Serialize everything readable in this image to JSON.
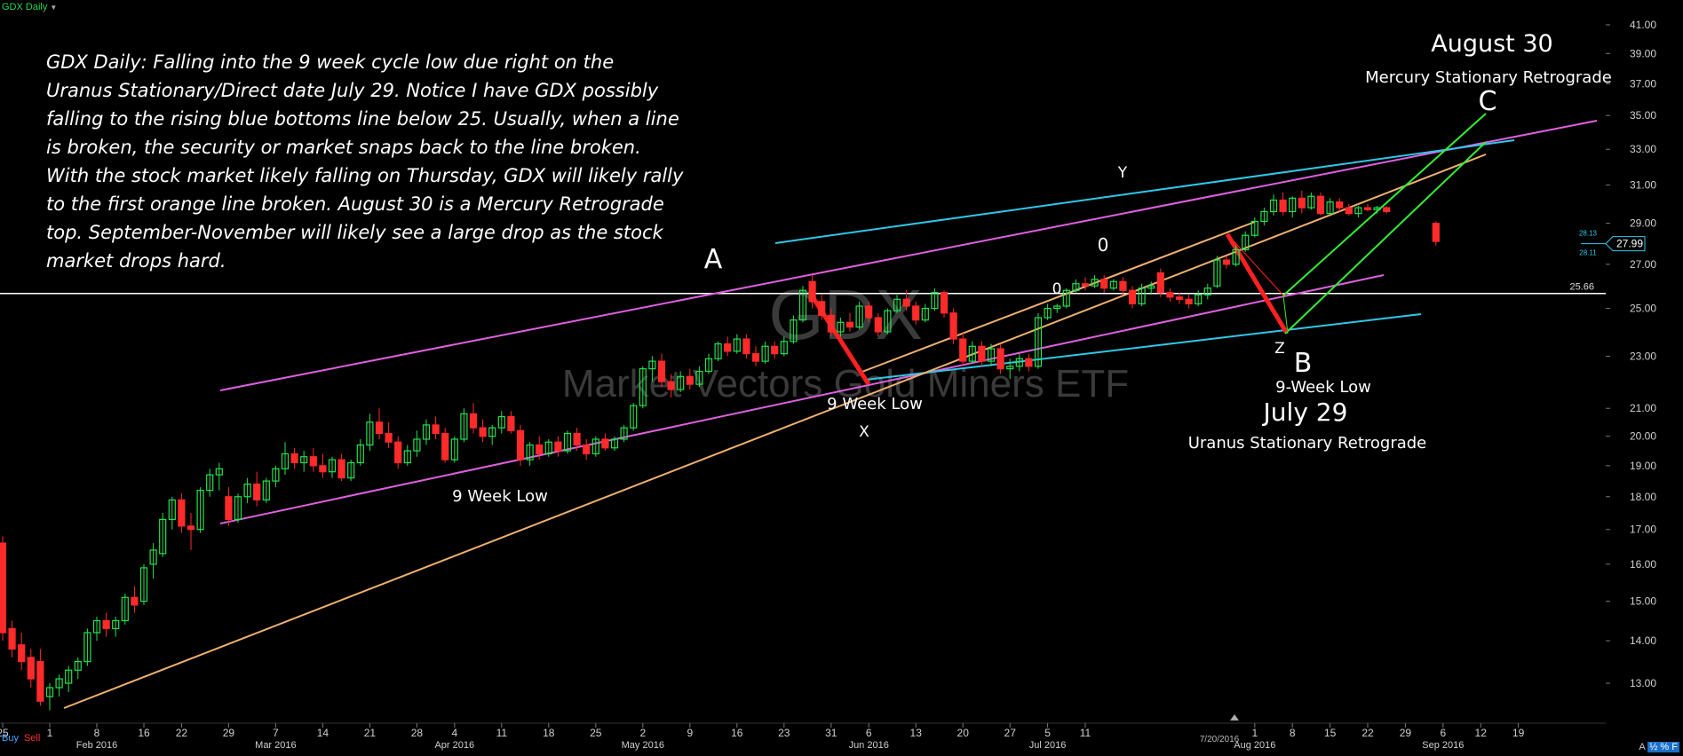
{
  "header": {
    "symbol_timeframe": "GDX Daily"
  },
  "watermark": {
    "symbol": "GDX",
    "name": "Market Vectors Gold Miners ETF"
  },
  "commentary": "GDX Daily: Falling into the 9 week cycle low due right on the Uranus Stationary/Direct date July 29. Notice I have GDX possibly falling to the rising blue bottoms line below 25. Usually, when a line is broken, the security or market snaps back to the line broken.  With the stock market likely falling on Thursday, GDX will likely rally to the first orange line broken. August 30 is a Mercury Retrograde top. September-November will likely see a large drop as the stock market drops hard.",
  "bottom_bar": {
    "buy_label": "Buy",
    "sell_label": "Sell",
    "corner_label": "A",
    "corner_icons": "½ % F",
    "cursor_date": "7/20/2016"
  },
  "colors": {
    "up": "#22e34d",
    "down": "#ff2a2a",
    "pink": "#e060e0",
    "cyan": "#30c8e8",
    "orange": "#f0b070",
    "green": "#33ee33",
    "red_arrow": "#ff2020",
    "white": "#ffffff"
  },
  "chart_data": {
    "type": "candlestick",
    "title": "GDX Daily",
    "ylim": [
      12.0,
      42.0
    ],
    "y_scale": "log",
    "y_ticks": [
      "41.00",
      "39.00",
      "37.00",
      "35.00",
      "33.00",
      "31.00",
      "29.00",
      "27.00",
      "25.00",
      "23.00",
      "21.00",
      "20.00",
      "19.00",
      "18.00",
      "17.00",
      "16.00",
      "15.00",
      "14.00",
      "13.00"
    ],
    "x_tick_days": [
      "25",
      "1",
      "8",
      "16",
      "22",
      "29",
      "7",
      "14",
      "21",
      "28",
      "4",
      "11",
      "18",
      "25",
      "2",
      "9",
      "16",
      "23",
      "31",
      "6",
      "13",
      "20",
      "27",
      "5",
      "11",
      "1",
      "8",
      "15",
      "22",
      "29",
      "6",
      "12",
      "19"
    ],
    "x_tick_months": [
      "Feb 2016",
      "Mar 2016",
      "Apr 2016",
      "May 2016",
      "Jun 2016",
      "Jul 2016",
      "Aug 2016",
      "Sep 2016"
    ],
    "last_price": "27.99",
    "price_tags": [
      "28.13",
      "28.11"
    ],
    "horizontal_line": {
      "value": 25.66,
      "label": "25.66"
    },
    "candles": [
      {
        "o": 16.6,
        "h": 16.8,
        "l": 14.0,
        "c": 14.2
      },
      {
        "o": 14.3,
        "h": 14.5,
        "l": 13.6,
        "c": 13.8
      },
      {
        "o": 13.9,
        "h": 14.2,
        "l": 13.3,
        "c": 13.5
      },
      {
        "o": 13.6,
        "h": 13.8,
        "l": 12.9,
        "c": 13.1
      },
      {
        "o": 13.5,
        "h": 13.8,
        "l": 12.5,
        "c": 12.6
      },
      {
        "o": 12.7,
        "h": 13.0,
        "l": 12.4,
        "c": 12.9
      },
      {
        "o": 12.9,
        "h": 13.2,
        "l": 12.7,
        "c": 13.1
      },
      {
        "o": 13.0,
        "h": 13.4,
        "l": 12.8,
        "c": 13.3
      },
      {
        "o": 13.3,
        "h": 13.6,
        "l": 13.1,
        "c": 13.5
      },
      {
        "o": 13.5,
        "h": 14.3,
        "l": 13.4,
        "c": 14.2
      },
      {
        "o": 14.2,
        "h": 14.6,
        "l": 14.0,
        "c": 14.5
      },
      {
        "o": 14.5,
        "h": 14.7,
        "l": 14.1,
        "c": 14.3
      },
      {
        "o": 14.3,
        "h": 14.6,
        "l": 14.1,
        "c": 14.5
      },
      {
        "o": 14.5,
        "h": 15.2,
        "l": 14.4,
        "c": 15.1
      },
      {
        "o": 15.1,
        "h": 15.4,
        "l": 14.7,
        "c": 14.9
      },
      {
        "o": 15.0,
        "h": 16.0,
        "l": 14.9,
        "c": 15.9
      },
      {
        "o": 16.0,
        "h": 16.6,
        "l": 15.6,
        "c": 16.4
      },
      {
        "o": 16.3,
        "h": 17.5,
        "l": 16.2,
        "c": 17.3
      },
      {
        "o": 17.3,
        "h": 18.0,
        "l": 17.0,
        "c": 17.9
      },
      {
        "o": 17.9,
        "h": 18.1,
        "l": 16.9,
        "c": 17.1
      },
      {
        "o": 17.1,
        "h": 17.5,
        "l": 16.4,
        "c": 17.0
      },
      {
        "o": 17.0,
        "h": 18.3,
        "l": 16.9,
        "c": 18.2
      },
      {
        "o": 18.2,
        "h": 18.9,
        "l": 18.0,
        "c": 18.7
      },
      {
        "o": 18.7,
        "h": 19.1,
        "l": 18.2,
        "c": 18.9
      },
      {
        "o": 18.0,
        "h": 18.3,
        "l": 17.1,
        "c": 17.3
      },
      {
        "o": 17.3,
        "h": 18.1,
        "l": 17.2,
        "c": 18.0
      },
      {
        "o": 18.0,
        "h": 18.6,
        "l": 17.8,
        "c": 18.4
      },
      {
        "o": 18.4,
        "h": 18.8,
        "l": 17.7,
        "c": 17.9
      },
      {
        "o": 17.9,
        "h": 18.6,
        "l": 17.8,
        "c": 18.5
      },
      {
        "o": 18.5,
        "h": 19.0,
        "l": 18.3,
        "c": 18.9
      },
      {
        "o": 18.9,
        "h": 19.8,
        "l": 18.7,
        "c": 19.4
      },
      {
        "o": 19.4,
        "h": 19.6,
        "l": 18.9,
        "c": 19.1
      },
      {
        "o": 19.1,
        "h": 19.5,
        "l": 18.8,
        "c": 19.3
      },
      {
        "o": 19.3,
        "h": 19.6,
        "l": 18.8,
        "c": 19.0
      },
      {
        "o": 19.0,
        "h": 19.4,
        "l": 18.6,
        "c": 18.8
      },
      {
        "o": 18.8,
        "h": 19.3,
        "l": 18.6,
        "c": 19.2
      },
      {
        "o": 19.2,
        "h": 19.4,
        "l": 18.5,
        "c": 18.6
      },
      {
        "o": 18.6,
        "h": 19.2,
        "l": 18.5,
        "c": 19.1
      },
      {
        "o": 19.1,
        "h": 19.9,
        "l": 19.0,
        "c": 19.7
      },
      {
        "o": 19.7,
        "h": 20.8,
        "l": 19.5,
        "c": 20.5
      },
      {
        "o": 20.5,
        "h": 21.0,
        "l": 19.9,
        "c": 20.1
      },
      {
        "o": 20.1,
        "h": 20.5,
        "l": 19.6,
        "c": 19.8
      },
      {
        "o": 19.8,
        "h": 20.0,
        "l": 18.9,
        "c": 19.1
      },
      {
        "o": 19.1,
        "h": 19.7,
        "l": 19.0,
        "c": 19.5
      },
      {
        "o": 19.5,
        "h": 20.2,
        "l": 19.3,
        "c": 19.9
      },
      {
        "o": 19.9,
        "h": 20.6,
        "l": 19.7,
        "c": 20.4
      },
      {
        "o": 20.4,
        "h": 20.7,
        "l": 19.9,
        "c": 20.1
      },
      {
        "o": 20.1,
        "h": 20.3,
        "l": 19.1,
        "c": 19.2
      },
      {
        "o": 19.2,
        "h": 20.0,
        "l": 19.1,
        "c": 19.9
      },
      {
        "o": 19.9,
        "h": 21.0,
        "l": 19.8,
        "c": 20.8
      },
      {
        "o": 20.8,
        "h": 21.2,
        "l": 20.1,
        "c": 20.3
      },
      {
        "o": 20.3,
        "h": 20.6,
        "l": 19.8,
        "c": 20.0
      },
      {
        "o": 20.0,
        "h": 20.4,
        "l": 19.7,
        "c": 20.3
      },
      {
        "o": 20.3,
        "h": 20.9,
        "l": 20.1,
        "c": 20.7
      },
      {
        "o": 20.7,
        "h": 20.9,
        "l": 20.1,
        "c": 20.2
      },
      {
        "o": 20.2,
        "h": 20.4,
        "l": 19.0,
        "c": 19.2
      },
      {
        "o": 19.2,
        "h": 19.8,
        "l": 19.0,
        "c": 19.7
      },
      {
        "o": 19.7,
        "h": 20.0,
        "l": 19.2,
        "c": 19.4
      },
      {
        "o": 19.4,
        "h": 19.9,
        "l": 19.3,
        "c": 19.8
      },
      {
        "o": 19.8,
        "h": 20.0,
        "l": 19.3,
        "c": 19.5
      },
      {
        "o": 19.5,
        "h": 20.2,
        "l": 19.4,
        "c": 20.1
      },
      {
        "o": 20.1,
        "h": 20.3,
        "l": 19.5,
        "c": 19.7
      },
      {
        "o": 19.7,
        "h": 19.9,
        "l": 19.2,
        "c": 19.4
      },
      {
        "o": 19.4,
        "h": 20.0,
        "l": 19.3,
        "c": 19.9
      },
      {
        "o": 19.9,
        "h": 20.1,
        "l": 19.5,
        "c": 19.6
      },
      {
        "o": 19.6,
        "h": 20.0,
        "l": 19.5,
        "c": 19.9
      },
      {
        "o": 19.9,
        "h": 20.4,
        "l": 19.8,
        "c": 20.3
      },
      {
        "o": 20.3,
        "h": 21.2,
        "l": 20.2,
        "c": 21.1
      },
      {
        "o": 21.1,
        "h": 22.6,
        "l": 21.0,
        "c": 22.5
      },
      {
        "o": 22.5,
        "h": 23.0,
        "l": 22.0,
        "c": 22.8
      },
      {
        "o": 22.8,
        "h": 23.1,
        "l": 21.8,
        "c": 22.0
      },
      {
        "o": 22.0,
        "h": 22.3,
        "l": 21.4,
        "c": 21.7
      },
      {
        "o": 21.7,
        "h": 22.4,
        "l": 21.6,
        "c": 22.2
      },
      {
        "o": 22.2,
        "h": 22.5,
        "l": 21.7,
        "c": 21.9
      },
      {
        "o": 21.9,
        "h": 22.6,
        "l": 21.8,
        "c": 22.4
      },
      {
        "o": 22.4,
        "h": 23.1,
        "l": 22.3,
        "c": 22.9
      },
      {
        "o": 22.9,
        "h": 23.6,
        "l": 22.8,
        "c": 23.5
      },
      {
        "o": 23.5,
        "h": 23.8,
        "l": 23.0,
        "c": 23.2
      },
      {
        "o": 23.2,
        "h": 23.9,
        "l": 23.1,
        "c": 23.7
      },
      {
        "o": 23.7,
        "h": 23.9,
        "l": 22.9,
        "c": 23.1
      },
      {
        "o": 23.1,
        "h": 23.4,
        "l": 22.6,
        "c": 22.8
      },
      {
        "o": 22.8,
        "h": 23.6,
        "l": 22.7,
        "c": 23.4
      },
      {
        "o": 23.4,
        "h": 23.6,
        "l": 22.9,
        "c": 23.1
      },
      {
        "o": 23.1,
        "h": 23.8,
        "l": 23.0,
        "c": 23.6
      },
      {
        "o": 23.6,
        "h": 24.7,
        "l": 23.5,
        "c": 24.5
      },
      {
        "o": 24.5,
        "h": 26.0,
        "l": 24.4,
        "c": 25.8
      },
      {
        "o": 26.2,
        "h": 26.5,
        "l": 25.0,
        "c": 25.3
      },
      {
        "o": 25.3,
        "h": 25.6,
        "l": 24.5,
        "c": 24.7
      },
      {
        "o": 24.7,
        "h": 25.0,
        "l": 23.8,
        "c": 24.0
      },
      {
        "o": 24.0,
        "h": 24.6,
        "l": 23.8,
        "c": 24.4
      },
      {
        "o": 24.4,
        "h": 24.8,
        "l": 24.0,
        "c": 24.2
      },
      {
        "o": 24.2,
        "h": 25.3,
        "l": 24.1,
        "c": 25.1
      },
      {
        "o": 25.1,
        "h": 25.3,
        "l": 24.4,
        "c": 24.6
      },
      {
        "o": 24.6,
        "h": 24.8,
        "l": 23.8,
        "c": 24.0
      },
      {
        "o": 24.0,
        "h": 25.0,
        "l": 23.9,
        "c": 24.9
      },
      {
        "o": 24.9,
        "h": 25.6,
        "l": 24.8,
        "c": 25.4
      },
      {
        "o": 25.4,
        "h": 25.8,
        "l": 24.9,
        "c": 25.1
      },
      {
        "o": 25.1,
        "h": 25.3,
        "l": 24.3,
        "c": 24.5
      },
      {
        "o": 24.5,
        "h": 25.2,
        "l": 24.4,
        "c": 25.0
      },
      {
        "o": 25.0,
        "h": 25.9,
        "l": 24.9,
        "c": 25.7
      },
      {
        "o": 25.7,
        "h": 25.8,
        "l": 24.6,
        "c": 24.8
      },
      {
        "o": 24.8,
        "h": 25.0,
        "l": 23.5,
        "c": 23.7
      },
      {
        "o": 23.7,
        "h": 24.0,
        "l": 22.6,
        "c": 22.8
      },
      {
        "o": 22.8,
        "h": 23.6,
        "l": 22.7,
        "c": 23.4
      },
      {
        "o": 23.4,
        "h": 23.6,
        "l": 22.6,
        "c": 22.8
      },
      {
        "o": 22.8,
        "h": 23.5,
        "l": 22.6,
        "c": 23.3
      },
      {
        "o": 23.3,
        "h": 23.5,
        "l": 22.3,
        "c": 22.5
      },
      {
        "o": 22.5,
        "h": 22.9,
        "l": 22.1,
        "c": 22.6
      },
      {
        "o": 22.6,
        "h": 23.1,
        "l": 22.4,
        "c": 22.9
      },
      {
        "o": 22.9,
        "h": 23.1,
        "l": 22.4,
        "c": 22.6
      },
      {
        "o": 22.6,
        "h": 24.8,
        "l": 22.5,
        "c": 24.6
      },
      {
        "o": 24.6,
        "h": 25.2,
        "l": 24.5,
        "c": 25.0
      },
      {
        "o": 25.0,
        "h": 25.2,
        "l": 24.8,
        "c": 25.1
      },
      {
        "o": 25.1,
        "h": 25.9,
        "l": 25.0,
        "c": 25.8
      },
      {
        "o": 25.8,
        "h": 26.3,
        "l": 25.7,
        "c": 26.1
      },
      {
        "o": 26.1,
        "h": 26.4,
        "l": 25.8,
        "c": 26.0
      },
      {
        "o": 26.0,
        "h": 26.5,
        "l": 25.9,
        "c": 26.3
      },
      {
        "o": 26.3,
        "h": 26.5,
        "l": 25.7,
        "c": 25.9
      },
      {
        "o": 25.9,
        "h": 26.3,
        "l": 25.8,
        "c": 26.2
      },
      {
        "o": 26.2,
        "h": 26.4,
        "l": 25.6,
        "c": 25.8
      },
      {
        "o": 25.8,
        "h": 26.0,
        "l": 25.0,
        "c": 25.2
      },
      {
        "o": 25.2,
        "h": 26.1,
        "l": 25.1,
        "c": 25.9
      },
      {
        "o": 25.9,
        "h": 26.2,
        "l": 25.6,
        "c": 26.0
      },
      {
        "o": 26.6,
        "h": 26.8,
        "l": 25.5,
        "c": 25.7
      },
      {
        "o": 25.7,
        "h": 25.9,
        "l": 25.3,
        "c": 25.5
      },
      {
        "o": 25.5,
        "h": 25.7,
        "l": 25.2,
        "c": 25.4
      },
      {
        "o": 25.4,
        "h": 25.6,
        "l": 25.0,
        "c": 25.2
      },
      {
        "o": 25.2,
        "h": 25.8,
        "l": 25.1,
        "c": 25.6
      },
      {
        "o": 25.6,
        "h": 26.1,
        "l": 25.4,
        "c": 25.9
      },
      {
        "o": 26.0,
        "h": 27.4,
        "l": 25.9,
        "c": 27.2
      },
      {
        "o": 27.2,
        "h": 27.4,
        "l": 26.8,
        "c": 27.0
      },
      {
        "o": 27.0,
        "h": 27.9,
        "l": 26.9,
        "c": 27.7
      },
      {
        "o": 27.7,
        "h": 28.6,
        "l": 27.6,
        "c": 28.4
      },
      {
        "o": 28.4,
        "h": 29.3,
        "l": 28.3,
        "c": 29.1
      },
      {
        "o": 29.1,
        "h": 29.8,
        "l": 28.9,
        "c": 29.6
      },
      {
        "o": 29.6,
        "h": 30.5,
        "l": 29.4,
        "c": 30.2
      },
      {
        "o": 30.2,
        "h": 30.6,
        "l": 29.4,
        "c": 29.6
      },
      {
        "o": 29.6,
        "h": 30.4,
        "l": 29.3,
        "c": 30.3
      },
      {
        "o": 30.3,
        "h": 30.7,
        "l": 29.5,
        "c": 29.8
      },
      {
        "o": 29.8,
        "h": 30.6,
        "l": 29.7,
        "c": 30.4
      },
      {
        "o": 30.4,
        "h": 30.6,
        "l": 29.4,
        "c": 29.5
      },
      {
        "o": 29.5,
        "h": 30.3,
        "l": 29.4,
        "c": 30.1
      },
      {
        "o": 30.1,
        "h": 30.3,
        "l": 29.6,
        "c": 29.8
      },
      {
        "o": 29.8,
        "h": 30.0,
        "l": 29.4,
        "c": 29.5
      },
      {
        "o": 29.5,
        "h": 29.9,
        "l": 29.3,
        "c": 29.8
      },
      {
        "o": 29.8,
        "h": 30.0,
        "l": 29.6,
        "c": 29.7
      },
      {
        "o": 29.7,
        "h": 29.9,
        "l": 29.5,
        "c": 29.8
      },
      {
        "o": 29.8,
        "h": 29.9,
        "l": 29.5,
        "c": 29.6
      },
      {
        "o": 29.0,
        "h": 29.1,
        "l": 27.9,
        "c": 28.1
      }
    ],
    "annotations": [
      {
        "text": "A"
      },
      {
        "text": "Y"
      },
      {
        "text": "0"
      },
      {
        "text": "0"
      },
      {
        "text": "X"
      },
      {
        "text": "Z"
      },
      {
        "text": "B"
      },
      {
        "text": "C"
      },
      {
        "text": "9 Week Low"
      },
      {
        "text": "9 Week Low"
      },
      {
        "text": "9-Week Low"
      },
      {
        "text": "July 29"
      },
      {
        "text": "Uranus Stationary Retrograde"
      },
      {
        "text": "August 30"
      },
      {
        "text": "Mercury Stationary Retrograde"
      }
    ]
  }
}
